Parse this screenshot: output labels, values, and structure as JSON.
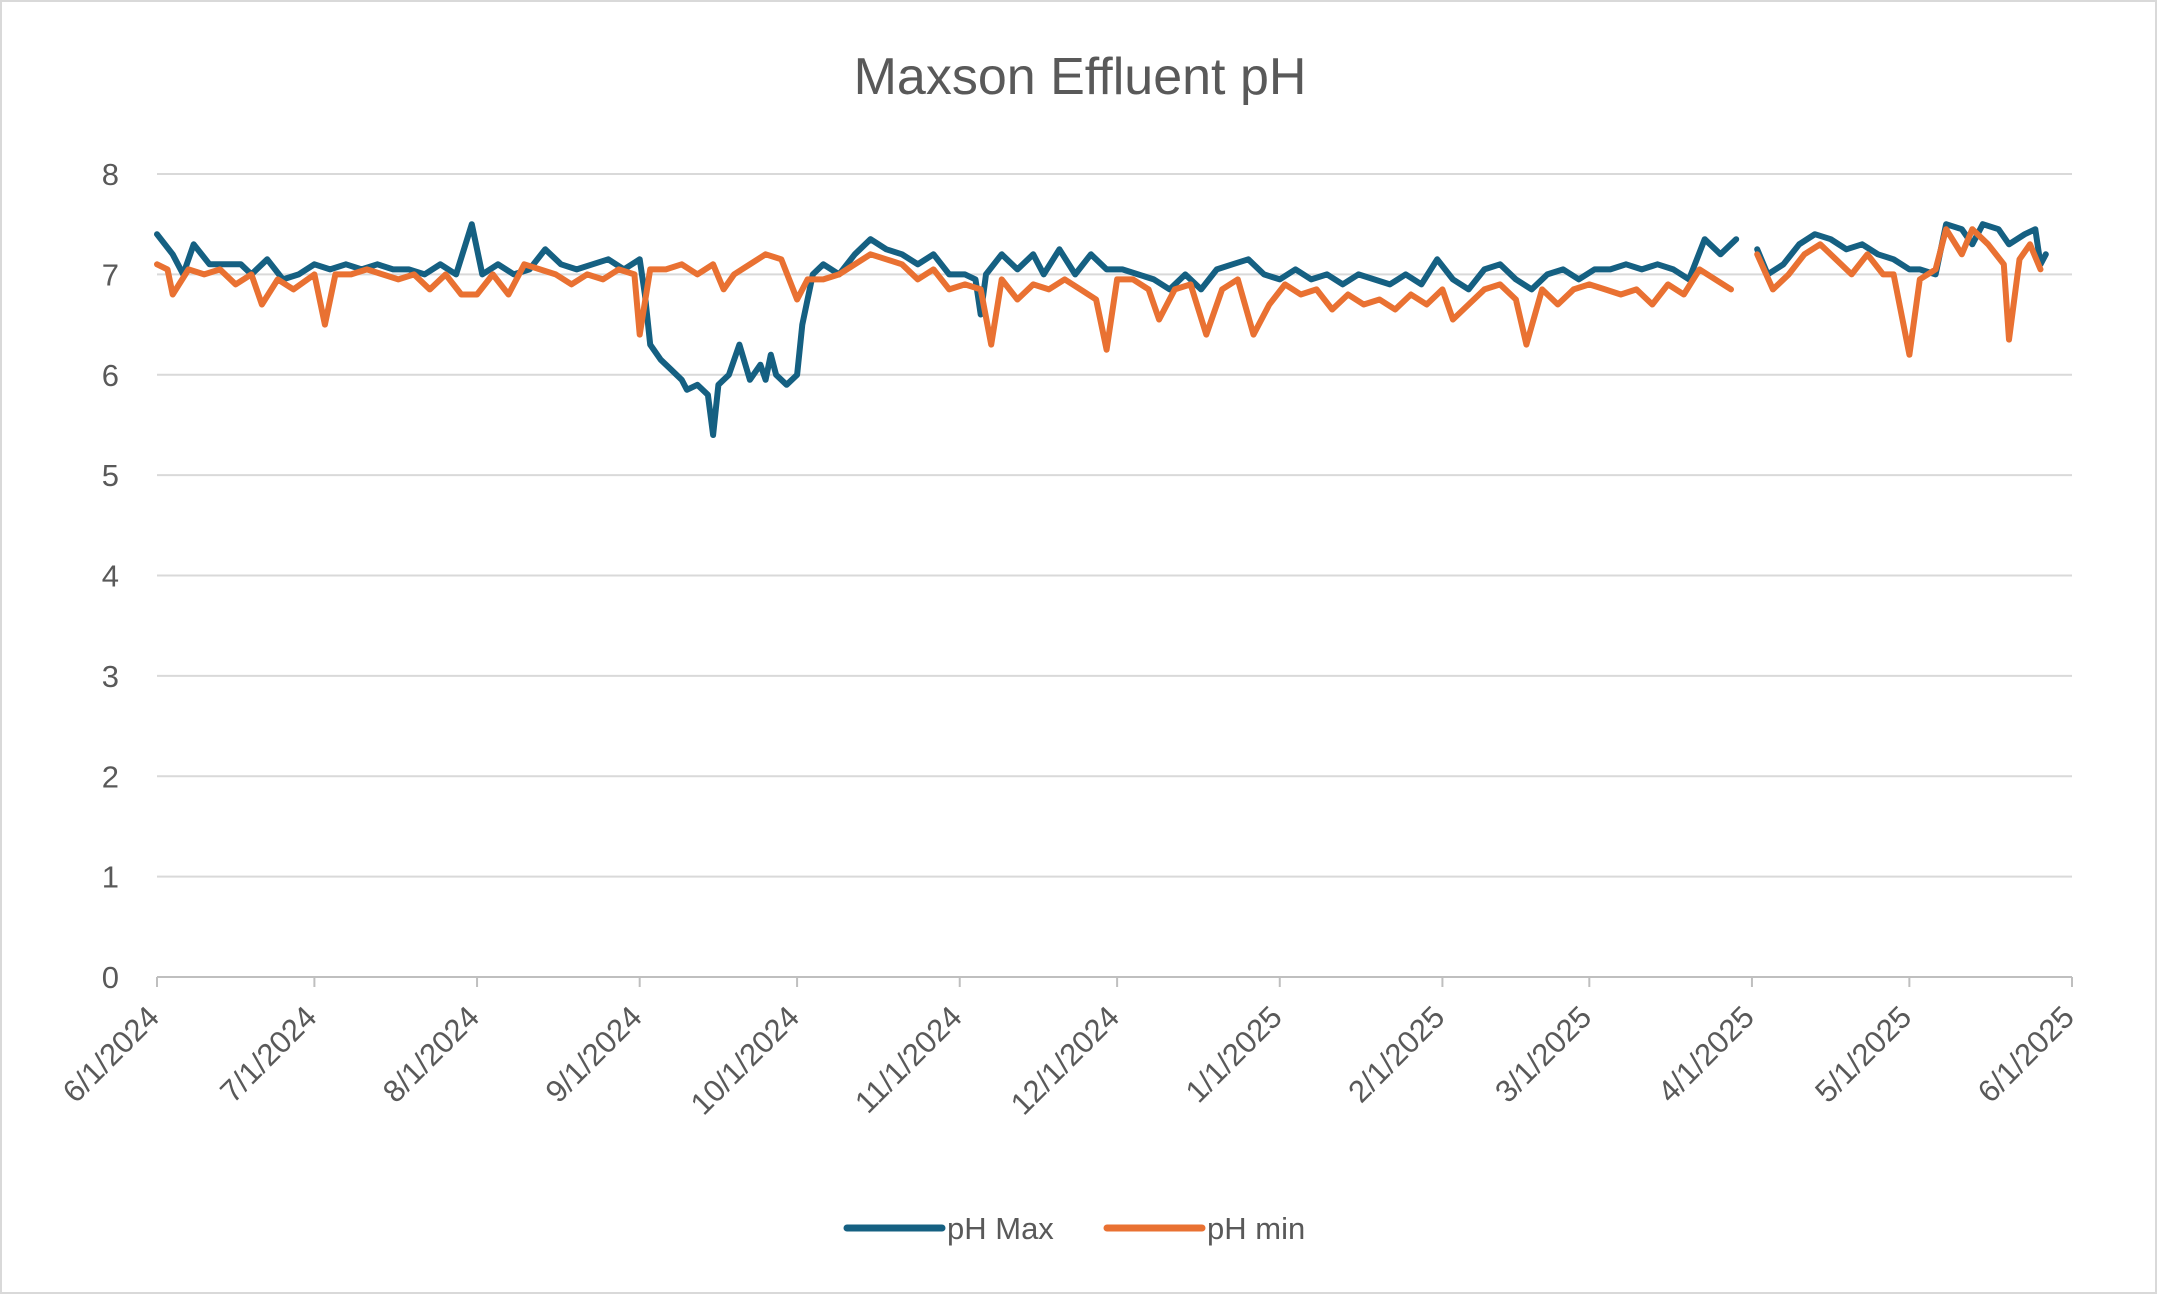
{
  "chart_data": {
    "type": "line",
    "title": "Maxson Effluent pH",
    "xlabel": "",
    "ylabel": "",
    "ylim": [
      0,
      8
    ],
    "y_ticks": [
      "0",
      "1",
      "2",
      "3",
      "4",
      "5",
      "6",
      "7",
      "8"
    ],
    "x_range": [
      "2024-06-01",
      "2025-06-01"
    ],
    "x_ticks": [
      {
        "date": "2024-06-01",
        "label": "6/1/2024"
      },
      {
        "date": "2024-07-01",
        "label": "7/1/2024"
      },
      {
        "date": "2024-08-01",
        "label": "8/1/2024"
      },
      {
        "date": "2024-09-01",
        "label": "9/1/2024"
      },
      {
        "date": "2024-10-01",
        "label": "10/1/2024"
      },
      {
        "date": "2024-11-01",
        "label": "11/1/2024"
      },
      {
        "date": "2024-12-01",
        "label": "12/1/2024"
      },
      {
        "date": "2025-01-01",
        "label": "1/1/2025"
      },
      {
        "date": "2025-02-01",
        "label": "2/1/2025"
      },
      {
        "date": "2025-03-01",
        "label": "3/1/2025"
      },
      {
        "date": "2025-04-01",
        "label": "4/1/2025"
      },
      {
        "date": "2025-05-01",
        "label": "5/1/2025"
      },
      {
        "date": "2025-06-01",
        "label": "6/1/2025"
      }
    ],
    "grid": "horizontal",
    "legend_position": "bottom",
    "series": [
      {
        "name": "pH Max",
        "color": "#156082",
        "points": [
          [
            "2024-06-01",
            7.4
          ],
          [
            "2024-06-04",
            7.2
          ],
          [
            "2024-06-06",
            7.0
          ],
          [
            "2024-06-08",
            7.3
          ],
          [
            "2024-06-11",
            7.1
          ],
          [
            "2024-06-14",
            7.1
          ],
          [
            "2024-06-17",
            7.1
          ],
          [
            "2024-06-19",
            7.0
          ],
          [
            "2024-06-22",
            7.15
          ],
          [
            "2024-06-25",
            6.95
          ],
          [
            "2024-06-28",
            7.0
          ],
          [
            "2024-07-01",
            7.1
          ],
          [
            "2024-07-04",
            7.05
          ],
          [
            "2024-07-07",
            7.1
          ],
          [
            "2024-07-10",
            7.05
          ],
          [
            "2024-07-13",
            7.1
          ],
          [
            "2024-07-16",
            7.05
          ],
          [
            "2024-07-19",
            7.05
          ],
          [
            "2024-07-22",
            7.0
          ],
          [
            "2024-07-25",
            7.1
          ],
          [
            "2024-07-28",
            7.0
          ],
          [
            "2024-07-31",
            7.5
          ],
          [
            "2024-08-02",
            7.0
          ],
          [
            "2024-08-05",
            7.1
          ],
          [
            "2024-08-08",
            7.0
          ],
          [
            "2024-08-11",
            7.05
          ],
          [
            "2024-08-14",
            7.25
          ],
          [
            "2024-08-17",
            7.1
          ],
          [
            "2024-08-20",
            7.05
          ],
          [
            "2024-08-23",
            7.1
          ],
          [
            "2024-08-26",
            7.15
          ],
          [
            "2024-08-29",
            7.05
          ],
          [
            "2024-09-01",
            7.15
          ],
          [
            "2024-09-02",
            6.8
          ],
          [
            "2024-09-03",
            6.3
          ],
          [
            "2024-09-05",
            6.15
          ],
          [
            "2024-09-07",
            6.05
          ],
          [
            "2024-09-09",
            5.95
          ],
          [
            "2024-09-10",
            5.85
          ],
          [
            "2024-09-12",
            5.9
          ],
          [
            "2024-09-14",
            5.8
          ],
          [
            "2024-09-15",
            5.4
          ],
          [
            "2024-09-16",
            5.9
          ],
          [
            "2024-09-18",
            6.0
          ],
          [
            "2024-09-20",
            6.3
          ],
          [
            "2024-09-22",
            5.95
          ],
          [
            "2024-09-24",
            6.1
          ],
          [
            "2024-09-25",
            5.95
          ],
          [
            "2024-09-26",
            6.2
          ],
          [
            "2024-09-27",
            6.0
          ],
          [
            "2024-09-29",
            5.9
          ],
          [
            "2024-10-01",
            6.0
          ],
          [
            "2024-10-02",
            6.5
          ],
          [
            "2024-10-04",
            7.0
          ],
          [
            "2024-10-06",
            7.1
          ],
          [
            "2024-10-09",
            7.0
          ],
          [
            "2024-10-12",
            7.2
          ],
          [
            "2024-10-15",
            7.35
          ],
          [
            "2024-10-18",
            7.25
          ],
          [
            "2024-10-21",
            7.2
          ],
          [
            "2024-10-24",
            7.1
          ],
          [
            "2024-10-27",
            7.2
          ],
          [
            "2024-10-30",
            7.0
          ],
          [
            "2024-11-02",
            7.0
          ],
          [
            "2024-11-04",
            6.95
          ],
          [
            "2024-11-05",
            6.6
          ],
          [
            "2024-11-06",
            7.0
          ],
          [
            "2024-11-09",
            7.2
          ],
          [
            "2024-11-12",
            7.05
          ],
          [
            "2024-11-15",
            7.2
          ],
          [
            "2024-11-17",
            7.0
          ],
          [
            "2024-11-20",
            7.25
          ],
          [
            "2024-11-23",
            7.0
          ],
          [
            "2024-11-26",
            7.2
          ],
          [
            "2024-11-29",
            7.05
          ],
          [
            "2024-12-02",
            7.05
          ],
          [
            "2024-12-05",
            7.0
          ],
          [
            "2024-12-08",
            6.95
          ],
          [
            "2024-12-11",
            6.85
          ],
          [
            "2024-12-14",
            7.0
          ],
          [
            "2024-12-17",
            6.85
          ],
          [
            "2024-12-20",
            7.05
          ],
          [
            "2024-12-23",
            7.1
          ],
          [
            "2024-12-26",
            7.15
          ],
          [
            "2024-12-29",
            7.0
          ],
          [
            "2025-01-01",
            6.95
          ],
          [
            "2025-01-04",
            7.05
          ],
          [
            "2025-01-07",
            6.95
          ],
          [
            "2025-01-10",
            7.0
          ],
          [
            "2025-01-13",
            6.9
          ],
          [
            "2025-01-16",
            7.0
          ],
          [
            "2025-01-19",
            6.95
          ],
          [
            "2025-01-22",
            6.9
          ],
          [
            "2025-01-25",
            7.0
          ],
          [
            "2025-01-28",
            6.9
          ],
          [
            "2025-01-31",
            7.15
          ],
          [
            "2025-02-03",
            6.95
          ],
          [
            "2025-02-06",
            6.85
          ],
          [
            "2025-02-09",
            7.05
          ],
          [
            "2025-02-12",
            7.1
          ],
          [
            "2025-02-15",
            6.95
          ],
          [
            "2025-02-18",
            6.85
          ],
          [
            "2025-02-21",
            7.0
          ],
          [
            "2025-02-24",
            7.05
          ],
          [
            "2025-02-27",
            6.95
          ],
          [
            "2025-03-02",
            7.05
          ],
          [
            "2025-03-05",
            7.05
          ],
          [
            "2025-03-08",
            7.1
          ],
          [
            "2025-03-11",
            7.05
          ],
          [
            "2025-03-14",
            7.1
          ],
          [
            "2025-03-17",
            7.05
          ],
          [
            "2025-03-20",
            6.95
          ],
          [
            "2025-03-23",
            7.35
          ],
          [
            "2025-03-26",
            7.2
          ],
          [
            "2025-03-29",
            7.35
          ],
          [
            "2025-04-01",
            null
          ],
          [
            "2025-04-02",
            7.25
          ],
          [
            "2025-04-04",
            7.0
          ],
          [
            "2025-04-07",
            7.1
          ],
          [
            "2025-04-10",
            7.3
          ],
          [
            "2025-04-13",
            7.4
          ],
          [
            "2025-04-16",
            7.35
          ],
          [
            "2025-04-19",
            7.25
          ],
          [
            "2025-04-22",
            7.3
          ],
          [
            "2025-04-25",
            7.2
          ],
          [
            "2025-04-28",
            7.15
          ],
          [
            "2025-05-01",
            7.05
          ],
          [
            "2025-05-03",
            7.05
          ],
          [
            "2025-05-06",
            7.0
          ],
          [
            "2025-05-08",
            7.5
          ],
          [
            "2025-05-11",
            7.45
          ],
          [
            "2025-05-13",
            7.3
          ],
          [
            "2025-05-15",
            7.5
          ],
          [
            "2025-05-18",
            7.45
          ],
          [
            "2025-05-20",
            7.3
          ],
          [
            "2025-05-23",
            7.4
          ],
          [
            "2025-05-25",
            7.45
          ],
          [
            "2025-05-26",
            7.1
          ],
          [
            "2025-05-27",
            7.2
          ]
        ]
      },
      {
        "name": "pH min",
        "color": "#E97132",
        "points": [
          [
            "2024-06-01",
            7.1
          ],
          [
            "2024-06-03",
            7.05
          ],
          [
            "2024-06-04",
            6.8
          ],
          [
            "2024-06-07",
            7.05
          ],
          [
            "2024-06-10",
            7.0
          ],
          [
            "2024-06-13",
            7.05
          ],
          [
            "2024-06-16",
            6.9
          ],
          [
            "2024-06-19",
            7.0
          ],
          [
            "2024-06-21",
            6.7
          ],
          [
            "2024-06-24",
            6.95
          ],
          [
            "2024-06-27",
            6.85
          ],
          [
            "2024-07-01",
            7.0
          ],
          [
            "2024-07-03",
            6.5
          ],
          [
            "2024-07-05",
            7.0
          ],
          [
            "2024-07-08",
            7.0
          ],
          [
            "2024-07-11",
            7.05
          ],
          [
            "2024-07-14",
            7.0
          ],
          [
            "2024-07-17",
            6.95
          ],
          [
            "2024-07-20",
            7.0
          ],
          [
            "2024-07-23",
            6.85
          ],
          [
            "2024-07-26",
            7.0
          ],
          [
            "2024-07-29",
            6.8
          ],
          [
            "2024-08-01",
            6.8
          ],
          [
            "2024-08-04",
            7.0
          ],
          [
            "2024-08-07",
            6.8
          ],
          [
            "2024-08-10",
            7.1
          ],
          [
            "2024-08-13",
            7.05
          ],
          [
            "2024-08-16",
            7.0
          ],
          [
            "2024-08-19",
            6.9
          ],
          [
            "2024-08-22",
            7.0
          ],
          [
            "2024-08-25",
            6.95
          ],
          [
            "2024-08-28",
            7.05
          ],
          [
            "2024-08-31",
            7.0
          ],
          [
            "2024-09-01",
            6.4
          ],
          [
            "2024-09-03",
            7.05
          ],
          [
            "2024-09-06",
            7.05
          ],
          [
            "2024-09-09",
            7.1
          ],
          [
            "2024-09-12",
            7.0
          ],
          [
            "2024-09-15",
            7.1
          ],
          [
            "2024-09-17",
            6.85
          ],
          [
            "2024-09-19",
            7.0
          ],
          [
            "2024-09-22",
            7.1
          ],
          [
            "2024-09-25",
            7.2
          ],
          [
            "2024-09-28",
            7.15
          ],
          [
            "2024-10-01",
            6.75
          ],
          [
            "2024-10-03",
            6.95
          ],
          [
            "2024-10-06",
            6.95
          ],
          [
            "2024-10-09",
            7.0
          ],
          [
            "2024-10-12",
            7.1
          ],
          [
            "2024-10-15",
            7.2
          ],
          [
            "2024-10-18",
            7.15
          ],
          [
            "2024-10-21",
            7.1
          ],
          [
            "2024-10-24",
            6.95
          ],
          [
            "2024-10-27",
            7.05
          ],
          [
            "2024-10-30",
            6.85
          ],
          [
            "2024-11-02",
            6.9
          ],
          [
            "2024-11-05",
            6.85
          ],
          [
            "2024-11-07",
            6.3
          ],
          [
            "2024-11-09",
            6.95
          ],
          [
            "2024-11-12",
            6.75
          ],
          [
            "2024-11-15",
            6.9
          ],
          [
            "2024-11-18",
            6.85
          ],
          [
            "2024-11-21",
            6.95
          ],
          [
            "2024-11-24",
            6.85
          ],
          [
            "2024-11-27",
            6.75
          ],
          [
            "2024-11-29",
            6.25
          ],
          [
            "2024-12-01",
            6.95
          ],
          [
            "2024-12-04",
            6.95
          ],
          [
            "2024-12-07",
            6.85
          ],
          [
            "2024-12-09",
            6.55
          ],
          [
            "2024-12-12",
            6.85
          ],
          [
            "2024-12-15",
            6.9
          ],
          [
            "2024-12-18",
            6.4
          ],
          [
            "2024-12-21",
            6.85
          ],
          [
            "2024-12-24",
            6.95
          ],
          [
            "2024-12-27",
            6.4
          ],
          [
            "2024-12-30",
            6.7
          ],
          [
            "2025-01-02",
            6.9
          ],
          [
            "2025-01-05",
            6.8
          ],
          [
            "2025-01-08",
            6.85
          ],
          [
            "2025-01-11",
            6.65
          ],
          [
            "2025-01-14",
            6.8
          ],
          [
            "2025-01-17",
            6.7
          ],
          [
            "2025-01-20",
            6.75
          ],
          [
            "2025-01-23",
            6.65
          ],
          [
            "2025-01-26",
            6.8
          ],
          [
            "2025-01-29",
            6.7
          ],
          [
            "2025-02-01",
            6.85
          ],
          [
            "2025-02-03",
            6.55
          ],
          [
            "2025-02-06",
            6.7
          ],
          [
            "2025-02-09",
            6.85
          ],
          [
            "2025-02-12",
            6.9
          ],
          [
            "2025-02-15",
            6.75
          ],
          [
            "2025-02-17",
            6.3
          ],
          [
            "2025-02-20",
            6.85
          ],
          [
            "2025-02-23",
            6.7
          ],
          [
            "2025-02-26",
            6.85
          ],
          [
            "2025-03-01",
            6.9
          ],
          [
            "2025-03-04",
            6.85
          ],
          [
            "2025-03-07",
            6.8
          ],
          [
            "2025-03-10",
            6.85
          ],
          [
            "2025-03-13",
            6.7
          ],
          [
            "2025-03-16",
            6.9
          ],
          [
            "2025-03-19",
            6.8
          ],
          [
            "2025-03-22",
            7.05
          ],
          [
            "2025-03-25",
            6.95
          ],
          [
            "2025-03-28",
            6.85
          ],
          [
            "2025-04-01",
            null
          ],
          [
            "2025-04-02",
            7.2
          ],
          [
            "2025-04-05",
            6.85
          ],
          [
            "2025-04-08",
            7.0
          ],
          [
            "2025-04-11",
            7.2
          ],
          [
            "2025-04-14",
            7.3
          ],
          [
            "2025-04-17",
            7.15
          ],
          [
            "2025-04-20",
            7.0
          ],
          [
            "2025-04-23",
            7.2
          ],
          [
            "2025-04-26",
            7.0
          ],
          [
            "2025-04-28",
            7.0
          ],
          [
            "2025-05-01",
            6.2
          ],
          [
            "2025-05-03",
            6.95
          ],
          [
            "2025-05-06",
            7.05
          ],
          [
            "2025-05-08",
            7.45
          ],
          [
            "2025-05-11",
            7.2
          ],
          [
            "2025-05-13",
            7.45
          ],
          [
            "2025-05-16",
            7.3
          ],
          [
            "2025-05-19",
            7.1
          ],
          [
            "2025-05-20",
            6.35
          ],
          [
            "2025-05-22",
            7.15
          ],
          [
            "2025-05-24",
            7.3
          ],
          [
            "2025-05-26",
            7.05
          ]
        ]
      }
    ]
  }
}
